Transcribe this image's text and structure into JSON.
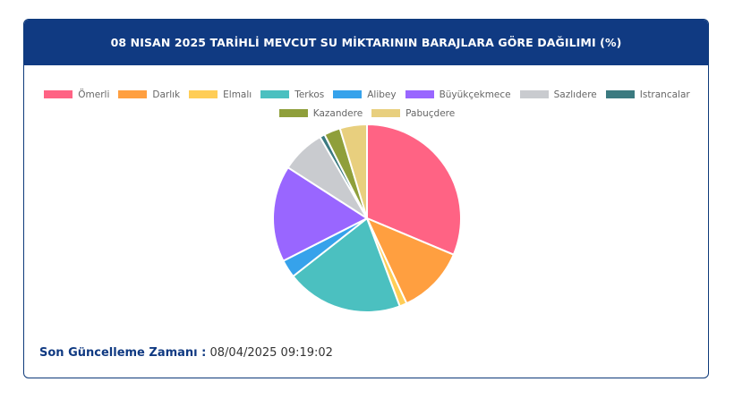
{
  "header": {
    "title": "08 NISAN 2025 TARİHLİ MEVCUT SU MİKTARININ BARAJLARA GÖRE DAĞILIMI (%)"
  },
  "chart_data": {
    "type": "pie",
    "title": "08 NISAN 2025 TARİHLİ MEVCUT SU MİKTARININ BARAJLARA GÖRE DAĞILIMI (%)",
    "legend_position": "top",
    "slices": [
      {
        "label": "Ömerli",
        "value": 32.3,
        "color": "#ff6384"
      },
      {
        "label": "Darlık",
        "value": 12.1,
        "color": "#ff9f40"
      },
      {
        "label": "Elmalı",
        "value": 1.3,
        "color": "#ffcd56"
      },
      {
        "label": "Terkos",
        "value": 20.7,
        "color": "#4bc0c0"
      },
      {
        "label": "Alibey",
        "value": 3.2,
        "color": "#36a2eb"
      },
      {
        "label": "Büyükçekmece",
        "value": 17.1,
        "color": "#9966ff"
      },
      {
        "label": "Sazlıdere",
        "value": 7.8,
        "color": "#c9cbcf"
      },
      {
        "label": "Istrancalar",
        "value": 0.9,
        "color": "#3b7a80"
      },
      {
        "label": "Kazandere",
        "value": 2.9,
        "color": "#8f9f3b"
      },
      {
        "label": "Pabuçdere",
        "value": 4.8,
        "color": "#e8cf7e"
      }
    ]
  },
  "footer": {
    "label": "Son Güncelleme Zamanı :",
    "value": "08/04/2025 09:19:02"
  }
}
